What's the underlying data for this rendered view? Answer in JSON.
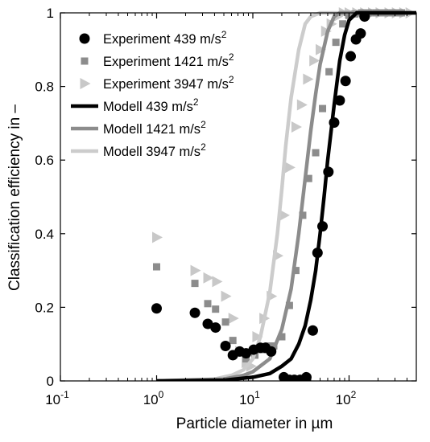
{
  "chart_data": {
    "type": "scatter",
    "x_scale": "log",
    "xlim": [
      0.1,
      500
    ],
    "ylim": [
      0,
      1
    ],
    "xlabel": "Particle diameter in µm",
    "ylabel": "Classification efficiency in –",
    "x_ticks": [
      {
        "value": 0.1,
        "base": "10",
        "exp": "-1"
      },
      {
        "value": 1,
        "base": "10",
        "exp": "0"
      },
      {
        "value": 10,
        "base": "10",
        "exp": "1"
      },
      {
        "value": 100,
        "base": "10",
        "exp": "2"
      }
    ],
    "y_ticks": [
      {
        "value": 0,
        "label": "0"
      },
      {
        "value": 0.2,
        "label": "0.2"
      },
      {
        "value": 0.4,
        "label": "0.4"
      },
      {
        "value": 0.6,
        "label": "0.6"
      },
      {
        "value": 0.8,
        "label": "0.8"
      },
      {
        "value": 1,
        "label": "1"
      }
    ],
    "grid": false,
    "legend_position": "top-left",
    "series": [
      {
        "name": "Experiment 439 m/s",
        "name_sup": "2",
        "kind": "scatter",
        "marker": "circle",
        "color": "#000000",
        "points": [
          [
            1.0,
            0.197
          ],
          [
            2.5,
            0.185
          ],
          [
            3.4,
            0.155
          ],
          [
            4.1,
            0.145
          ],
          [
            5.2,
            0.095
          ],
          [
            6.2,
            0.07
          ],
          [
            7.3,
            0.08
          ],
          [
            8.5,
            0.075
          ],
          [
            10.2,
            0.085
          ],
          [
            12.0,
            0.09
          ],
          [
            13.5,
            0.09
          ],
          [
            15.5,
            0.08
          ],
          [
            21,
            0.01
          ],
          [
            24,
            0.003
          ],
          [
            27,
            0.003
          ],
          [
            31,
            0.003
          ],
          [
            36,
            0.01
          ],
          [
            42,
            0.137
          ],
          [
            47,
            0.348
          ],
          [
            53,
            0.42
          ],
          [
            61,
            0.568
          ],
          [
            70,
            0.702
          ],
          [
            80,
            0.762
          ],
          [
            92,
            0.815
          ],
          [
            104,
            0.882
          ],
          [
            118,
            0.928
          ],
          [
            132,
            0.944
          ],
          [
            145,
            0.99
          ]
        ]
      },
      {
        "name": "Experiment 1421 m/s",
        "name_sup": "2",
        "kind": "scatter",
        "marker": "square",
        "color": "#8c8c8c",
        "points": [
          [
            1.0,
            0.31
          ],
          [
            2.5,
            0.265
          ],
          [
            3.4,
            0.21
          ],
          [
            4.1,
            0.195
          ],
          [
            5.2,
            0.16
          ],
          [
            6.2,
            0.11
          ],
          [
            7.3,
            0.08
          ],
          [
            8.5,
            0.06
          ],
          [
            10.5,
            0.07
          ],
          [
            12.5,
            0.085
          ],
          [
            14.5,
            0.095
          ],
          [
            16.5,
            0.095
          ],
          [
            20,
            0.12
          ],
          [
            24,
            0.205
          ],
          [
            28,
            0.3
          ],
          [
            33,
            0.45
          ],
          [
            38,
            0.55
          ],
          [
            45,
            0.62
          ],
          [
            53,
            0.74
          ],
          [
            62,
            0.84
          ],
          [
            73,
            0.92
          ],
          [
            86,
            0.97
          ],
          [
            100,
            0.993
          ],
          [
            115,
            0.997
          ],
          [
            135,
            1.0
          ],
          [
            160,
            1.0
          ],
          [
            190,
            1.0
          ],
          [
            220,
            1.0
          ],
          [
            260,
            1.0
          ],
          [
            300,
            1.0
          ],
          [
            350,
            1.0
          ]
        ]
      },
      {
        "name": "Experiment 3947 m/s",
        "name_sup": "2",
        "kind": "scatter",
        "marker": "triangle-right",
        "color": "#c8c8c8",
        "points": [
          [
            1.0,
            0.39
          ],
          [
            2.5,
            0.3
          ],
          [
            3.4,
            0.28
          ],
          [
            4.2,
            0.27
          ],
          [
            5.2,
            0.23
          ],
          [
            6.2,
            0.17
          ],
          [
            7.3,
            0.08
          ],
          [
            8.5,
            0.05
          ],
          [
            9.5,
            0.04
          ],
          [
            11,
            0.12
          ],
          [
            13,
            0.17
          ],
          [
            15.5,
            0.23
          ],
          [
            18,
            0.34
          ],
          [
            21,
            0.45
          ],
          [
            24,
            0.58
          ],
          [
            28,
            0.69
          ],
          [
            32,
            0.75
          ],
          [
            37,
            0.82
          ],
          [
            43,
            0.87
          ],
          [
            50,
            0.9
          ],
          [
            57,
            0.95
          ],
          [
            65,
            0.97
          ],
          [
            75,
            0.99
          ],
          [
            87,
            1.0
          ],
          [
            100,
            1.0
          ],
          [
            120,
            1.0
          ],
          [
            145,
            1.0
          ],
          [
            175,
            1.0
          ],
          [
            210,
            1.0
          ],
          [
            260,
            1.0
          ],
          [
            310,
            1.0
          ],
          [
            370,
            1.0
          ],
          [
            430,
            1.0
          ]
        ]
      },
      {
        "name": "Modell 439 m/s",
        "name_sup": "2",
        "kind": "line",
        "color": "#000000",
        "points": [
          [
            1,
            0.0
          ],
          [
            5,
            0.002
          ],
          [
            10,
            0.01
          ],
          [
            15,
            0.02
          ],
          [
            20,
            0.04
          ],
          [
            25,
            0.06
          ],
          [
            30,
            0.1
          ],
          [
            35,
            0.15
          ],
          [
            40,
            0.22
          ],
          [
            45,
            0.3
          ],
          [
            50,
            0.4
          ],
          [
            55,
            0.5
          ],
          [
            60,
            0.6
          ],
          [
            70,
            0.75
          ],
          [
            80,
            0.87
          ],
          [
            90,
            0.94
          ],
          [
            100,
            0.98
          ],
          [
            120,
            1.0
          ],
          [
            500,
            1.0
          ]
        ]
      },
      {
        "name": "Modell 1421 m/s",
        "name_sup": "2",
        "kind": "line",
        "color": "#8c8c8c",
        "points": [
          [
            1,
            0.0
          ],
          [
            5,
            0.005
          ],
          [
            8,
            0.015
          ],
          [
            10,
            0.025
          ],
          [
            15,
            0.06
          ],
          [
            20,
            0.14
          ],
          [
            25,
            0.25
          ],
          [
            30,
            0.4
          ],
          [
            35,
            0.55
          ],
          [
            40,
            0.68
          ],
          [
            45,
            0.78
          ],
          [
            50,
            0.86
          ],
          [
            60,
            0.95
          ],
          [
            70,
            0.99
          ],
          [
            80,
            1.0
          ],
          [
            500,
            1.0
          ]
        ]
      },
      {
        "name": "Modell 3947 m/s",
        "name_sup": "2",
        "kind": "line",
        "color": "#cccccc",
        "points": [
          [
            1,
            0.0
          ],
          [
            4,
            0.005
          ],
          [
            6,
            0.015
          ],
          [
            8,
            0.03
          ],
          [
            10,
            0.06
          ],
          [
            12,
            0.12
          ],
          [
            15,
            0.24
          ],
          [
            18,
            0.4
          ],
          [
            20,
            0.52
          ],
          [
            22,
            0.64
          ],
          [
            25,
            0.77
          ],
          [
            30,
            0.9
          ],
          [
            35,
            0.97
          ],
          [
            40,
            0.99
          ],
          [
            50,
            1.0
          ],
          [
            500,
            1.0
          ]
        ]
      }
    ]
  }
}
